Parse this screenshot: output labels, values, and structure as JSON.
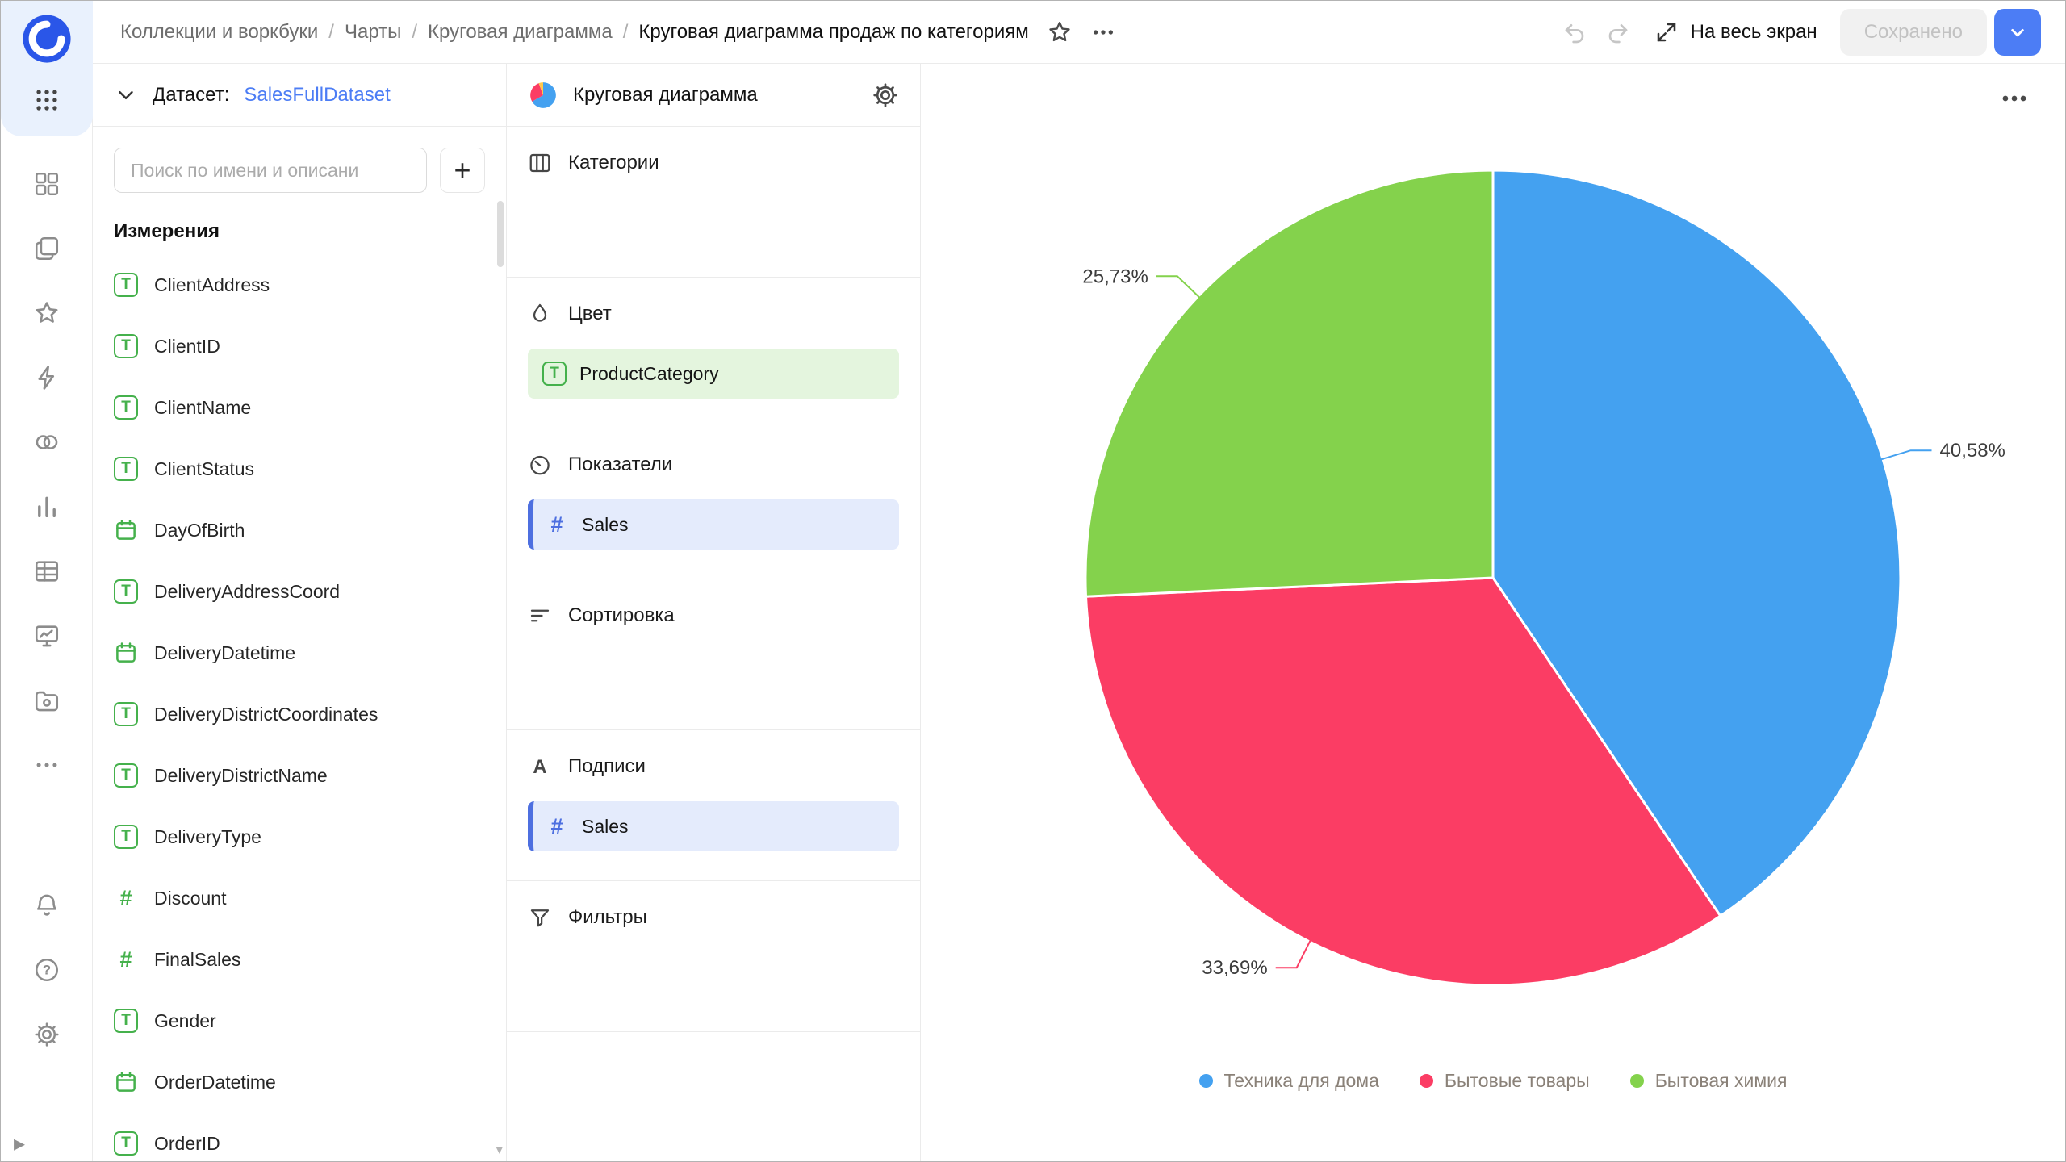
{
  "theme": {
    "accent": "#4c7df5",
    "green": "#45b14c",
    "chip-blue": "#4d6fe0"
  },
  "header": {
    "breadcrumbs": [
      "Коллекции и воркбуки",
      "Чарты",
      "Круговая диаграмма"
    ],
    "title": "Круговая диаграмма продаж по категориям",
    "fullscreen_label": "На весь экран",
    "saved_label": "Сохранено"
  },
  "rail": {
    "items": [
      "grid",
      "collections",
      "favorites",
      "lightning",
      "links",
      "charts",
      "tables",
      "dashboards",
      "storage",
      "more"
    ],
    "bottom": [
      "notifications",
      "help",
      "settings"
    ]
  },
  "dataset_panel": {
    "label": "Датасет:",
    "name": "SalesFullDataset",
    "search_placeholder": "Поиск по имени и описани",
    "dimensions_title": "Измерения",
    "fields": [
      {
        "name": "ClientAddress",
        "type": "text"
      },
      {
        "name": "ClientID",
        "type": "text"
      },
      {
        "name": "ClientName",
        "type": "text"
      },
      {
        "name": "ClientStatus",
        "type": "text"
      },
      {
        "name": "DayOfBirth",
        "type": "date"
      },
      {
        "name": "DeliveryAddressCoord",
        "type": "text"
      },
      {
        "name": "DeliveryDatetime",
        "type": "date"
      },
      {
        "name": "DeliveryDistrictCoordinates",
        "type": "text"
      },
      {
        "name": "DeliveryDistrictName",
        "type": "text"
      },
      {
        "name": "DeliveryType",
        "type": "text"
      },
      {
        "name": "Discount",
        "type": "number"
      },
      {
        "name": "FinalSales",
        "type": "number"
      },
      {
        "name": "Gender",
        "type": "text"
      },
      {
        "name": "OrderDatetime",
        "type": "date"
      },
      {
        "name": "OrderID",
        "type": "text"
      }
    ]
  },
  "config_panel": {
    "title": "Круговая диаграмма",
    "sections": [
      {
        "id": "categories",
        "label": "Категории",
        "icon": "columns",
        "items": []
      },
      {
        "id": "color",
        "label": "Цвет",
        "icon": "paint",
        "items": [
          {
            "name": "ProductCategory",
            "type": "text",
            "color": "green"
          }
        ]
      },
      {
        "id": "measures",
        "label": "Показатели",
        "icon": "measures",
        "items": [
          {
            "name": "Sales",
            "type": "number",
            "color": "blue"
          }
        ]
      },
      {
        "id": "sort",
        "label": "Сортировка",
        "icon": "sort",
        "items": []
      },
      {
        "id": "labels",
        "label": "Подписи",
        "icon": "labels",
        "items": [
          {
            "name": "Sales",
            "type": "number",
            "color": "blue"
          }
        ]
      },
      {
        "id": "filters",
        "label": "Фильтры",
        "icon": "filter",
        "items": []
      }
    ]
  },
  "chart_data": {
    "type": "pie",
    "title": "",
    "categories": [
      "Техника для дома",
      "Бытовые товары",
      "Бытовая химия"
    ],
    "values": [
      40.58,
      33.69,
      25.73
    ],
    "value_labels": [
      "40,58%",
      "33,69%",
      "25,73%"
    ],
    "colors": [
      "#44a1f0",
      "#fb3d64",
      "#84d24c"
    ],
    "legend_position": "bottom",
    "start_angle": "top",
    "direction": "clockwise"
  }
}
